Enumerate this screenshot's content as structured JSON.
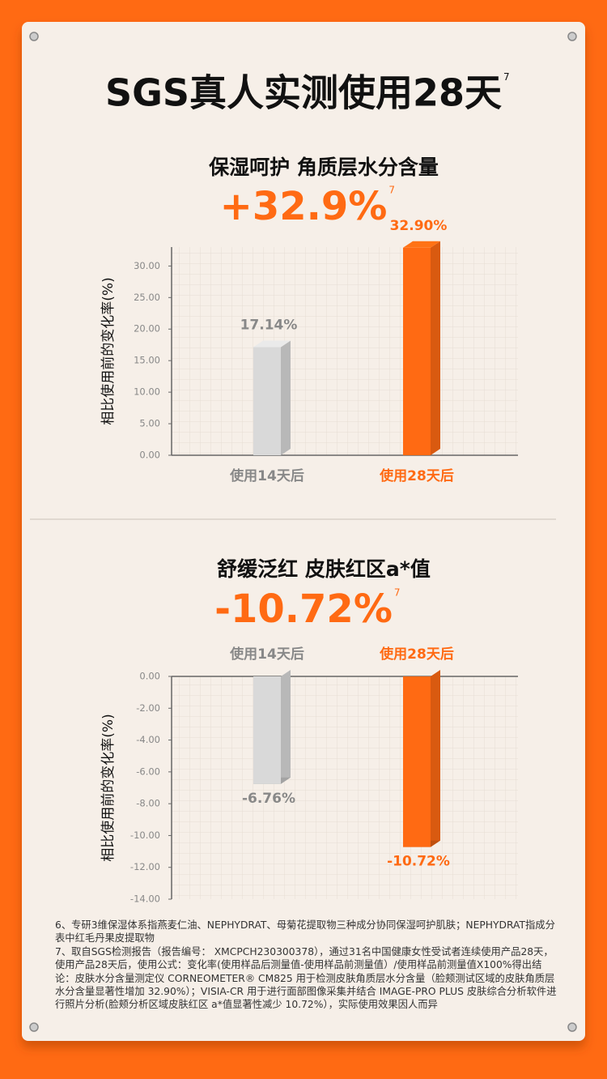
{
  "title": "SGS真人实测使用28天",
  "title_sup": "7",
  "chart_data": [
    {
      "type": "bar",
      "title": "保湿呵护  角质层水分含量",
      "headline": "+32.9%",
      "headline_sup": "7",
      "ylabel": "相比使用前的变化率(%)",
      "categories": [
        "使用14天后",
        "使用28天后"
      ],
      "values": [
        17.14,
        32.9
      ],
      "value_labels": [
        "17.14%",
        "32.90%"
      ],
      "colors": [
        "#d9d9d9",
        "#ff6a13"
      ],
      "ylim": [
        0,
        33
      ],
      "yticks": [
        {
          "value": 0,
          "label": "0.00"
        },
        {
          "value": 5,
          "label": "5.00"
        },
        {
          "value": 10,
          "label": "10.00"
        },
        {
          "value": 15,
          "label": "15.00"
        },
        {
          "value": 20,
          "label": "20.00"
        },
        {
          "value": 25,
          "label": "25.00"
        },
        {
          "value": 30,
          "label": "30.00"
        }
      ],
      "grid": true
    },
    {
      "type": "bar",
      "title": "舒缓泛红 皮肤红区a*值",
      "headline": "-10.72%",
      "headline_sup": "7",
      "ylabel": "相比使用前的变化率(%)",
      "categories": [
        "使用14天后",
        "使用28天后"
      ],
      "values": [
        -6.76,
        -10.72
      ],
      "value_labels": [
        "-6.76%",
        "-10.72%"
      ],
      "colors": [
        "#d9d9d9",
        "#ff6a13"
      ],
      "ylim": [
        -14,
        0
      ],
      "yticks": [
        {
          "value": 0,
          "label": "0.00"
        },
        {
          "value": -2,
          "label": "-2.00"
        },
        {
          "value": -4,
          "label": "-4.00"
        },
        {
          "value": -6,
          "label": "-6.00"
        },
        {
          "value": -8,
          "label": "-8.00"
        },
        {
          "value": -10,
          "label": "-10.00"
        },
        {
          "value": -12,
          "label": "-12.00"
        },
        {
          "value": -14,
          "label": "-14.00"
        }
      ],
      "grid": true
    }
  ],
  "footnotes": [
    "6、专研3维保湿体系指燕麦仁油、NEPHYDRAT、母菊花提取物三种成分协同保湿呵护肌肤；NEPHYDRAT指成分表中红毛丹果皮提取物",
    "7、取自SGS检测报告（报告编号： XMCPCH230300378），通过31名中国健康女性受试者连续使用产品28天，使用产品28天后，使用公式：变化率(使用样品后测量值-使用样品前测量值）/使用样品前测量值X100%得出结论：皮肤水分含量测定仪 CORNEOMETER® CM825 用于检测皮肤角质层水分含量（脸颊测试区域的皮肤角质层水分含量显著性增加 32.90%）；VISIA-CR 用于进行面部图像采集并结合 IMAGE-PRO PLUS 皮肤综合分析软件进行照片分析(脸颊分析区域皮肤红区 a*值显著性减少 10.72%），实际使用效果因人而异"
  ]
}
